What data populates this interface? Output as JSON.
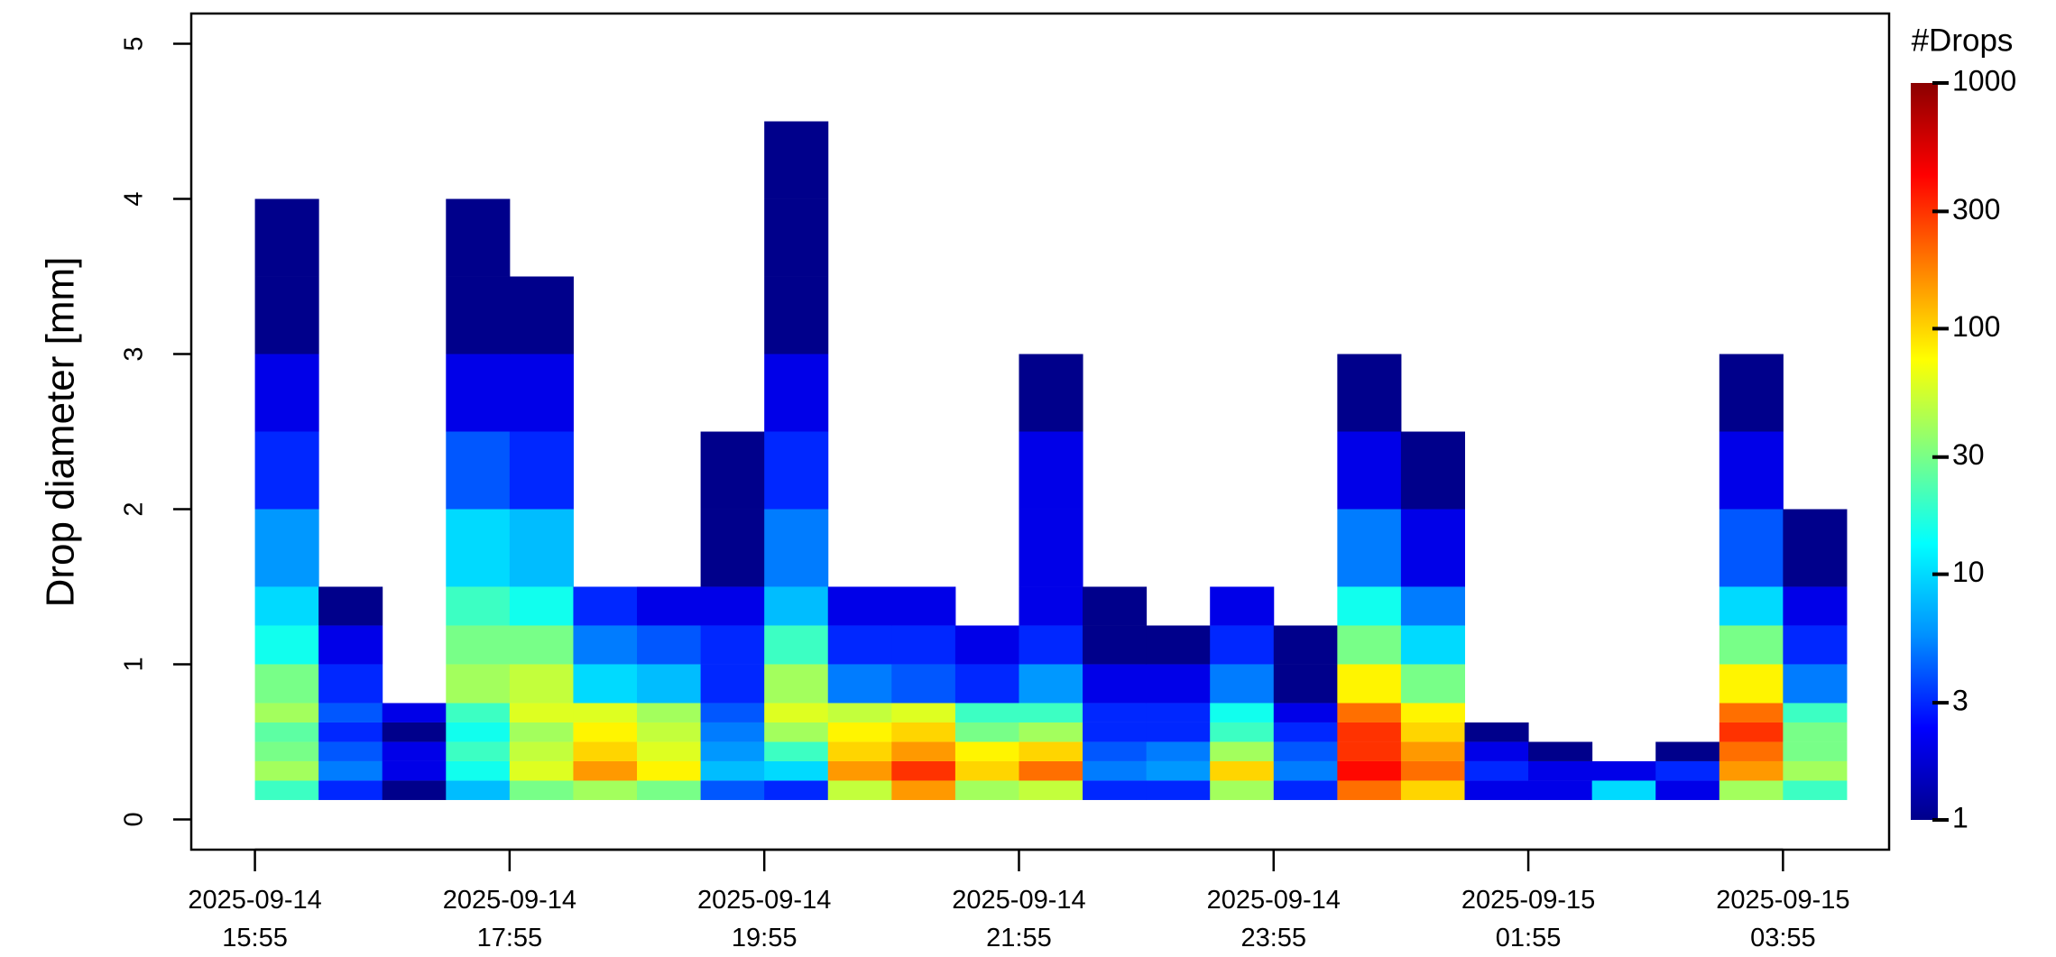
{
  "chart_data": {
    "type": "heatmap",
    "ylabel": "Drop diameter [mm]",
    "x": [
      "2025-09-14 15:55",
      "2025-09-14 16:25",
      "2025-09-14 16:55",
      "2025-09-14 17:25",
      "2025-09-14 17:55",
      "2025-09-14 18:25",
      "2025-09-14 18:55",
      "2025-09-14 19:25",
      "2025-09-14 19:55",
      "2025-09-14 20:25",
      "2025-09-14 20:55",
      "2025-09-14 21:25",
      "2025-09-14 21:55",
      "2025-09-14 22:25",
      "2025-09-14 22:55",
      "2025-09-14 23:25",
      "2025-09-14 23:55",
      "2025-09-15 00:25",
      "2025-09-15 00:55",
      "2025-09-15 01:25",
      "2025-09-15 01:55",
      "2025-09-15 02:25",
      "2025-09-15 02:55",
      "2025-09-15 03:25",
      "2025-09-15 03:55",
      "2025-09-15 04:25"
    ],
    "y": [
      0.125,
      0.25,
      0.375,
      0.5,
      0.625,
      0.75,
      1.0,
      1.25,
      1.5,
      2.0,
      2.5,
      3.0,
      3.5,
      4.0,
      4.5
    ],
    "z": [
      [
        20,
        40,
        30,
        25,
        40,
        30,
        15,
        10,
        6,
        3,
        2,
        1,
        1,
        null
      ],
      [
        3,
        5,
        4,
        3,
        4,
        3,
        2,
        1,
        null,
        null,
        null,
        null,
        null,
        null
      ],
      [
        1,
        2,
        2,
        1,
        2,
        null,
        null,
        null,
        null,
        null,
        null,
        null,
        null,
        null
      ],
      [
        8,
        15,
        20,
        15,
        20,
        40,
        30,
        20,
        10,
        4,
        2,
        1,
        1,
        null
      ],
      [
        30,
        60,
        50,
        40,
        60,
        50,
        30,
        15,
        8,
        3,
        2,
        1,
        null,
        null
      ],
      [
        40,
        150,
        100,
        80,
        60,
        10,
        5,
        3,
        null,
        null,
        null,
        null,
        null,
        null
      ],
      [
        30,
        80,
        60,
        50,
        40,
        8,
        4,
        2,
        null,
        null,
        null,
        null,
        null,
        null
      ],
      [
        4,
        8,
        6,
        5,
        4,
        3,
        3,
        2,
        1,
        1,
        null,
        null,
        null,
        null
      ],
      [
        3,
        10,
        20,
        40,
        60,
        40,
        20,
        8,
        5,
        3,
        2,
        1,
        1,
        1
      ],
      [
        50,
        150,
        100,
        80,
        50,
        5,
        3,
        2,
        null,
        null,
        null,
        null,
        null,
        null
      ],
      [
        150,
        300,
        150,
        100,
        60,
        4,
        3,
        2,
        null,
        null,
        null,
        null,
        null,
        null
      ],
      [
        40,
        100,
        80,
        30,
        20,
        3,
        2,
        null,
        null,
        null,
        null,
        null,
        null,
        null
      ],
      [
        50,
        200,
        100,
        40,
        20,
        6,
        3,
        2,
        2,
        2,
        1,
        null,
        null,
        null
      ],
      [
        3,
        5,
        4,
        3,
        3,
        2,
        1,
        1,
        null,
        null,
        null,
        null,
        null,
        null
      ],
      [
        3,
        6,
        5,
        3,
        3,
        2,
        1,
        null,
        null,
        null,
        null,
        null,
        null,
        null
      ],
      [
        40,
        100,
        40,
        20,
        15,
        5,
        3,
        2,
        null,
        null,
        null,
        null,
        null,
        null
      ],
      [
        3,
        5,
        4,
        3,
        2,
        1,
        1,
        null,
        null,
        null,
        null,
        null,
        null,
        null
      ],
      [
        200,
        400,
        300,
        300,
        200,
        80,
        30,
        15,
        5,
        2,
        1,
        null,
        null,
        null
      ],
      [
        100,
        200,
        150,
        100,
        80,
        30,
        10,
        5,
        2,
        1,
        null,
        null,
        null,
        null
      ],
      [
        2,
        3,
        2,
        1,
        null,
        null,
        null,
        null,
        null,
        null,
        null,
        null,
        null,
        null
      ],
      [
        2,
        2,
        1,
        null,
        null,
        null,
        null,
        null,
        null,
        null,
        null,
        null,
        null,
        null
      ],
      [
        10,
        2,
        null,
        null,
        null,
        null,
        null,
        null,
        null,
        null,
        null,
        null,
        null,
        null
      ],
      [
        2,
        3,
        1,
        null,
        null,
        null,
        null,
        null,
        null,
        null,
        null,
        null,
        null,
        null
      ],
      [
        40,
        150,
        200,
        300,
        200,
        80,
        30,
        10,
        4,
        2,
        1,
        null,
        null,
        null
      ],
      [
        20,
        40,
        30,
        30,
        20,
        5,
        3,
        2,
        1,
        null,
        null,
        null,
        null,
        null
      ]
    ],
    "xlim": [
      "2025-09-14 15:25",
      "2025-09-15 04:45"
    ],
    "xticks": [
      "2025-09-14 15:55",
      "2025-09-14 17:55",
      "2025-09-14 19:55",
      "2025-09-14 21:55",
      "2025-09-14 23:55",
      "2025-09-15 01:55",
      "2025-09-15 03:55"
    ],
    "ylim": [
      -0.195,
      5.195
    ],
    "yticks": [
      0,
      1,
      2,
      3,
      4,
      5
    ],
    "colorbar": {
      "title": "#Drops",
      "lim": [
        1,
        1000
      ],
      "ticks": [
        1,
        3,
        10,
        30,
        100,
        300,
        1000
      ],
      "log": true,
      "colors": [
        "#00008b",
        "#0000ff",
        "#0090ff",
        "#00ffff",
        "#80ff80",
        "#ffff00",
        "#ff8000",
        "#ff0000",
        "#8b0000"
      ]
    }
  }
}
